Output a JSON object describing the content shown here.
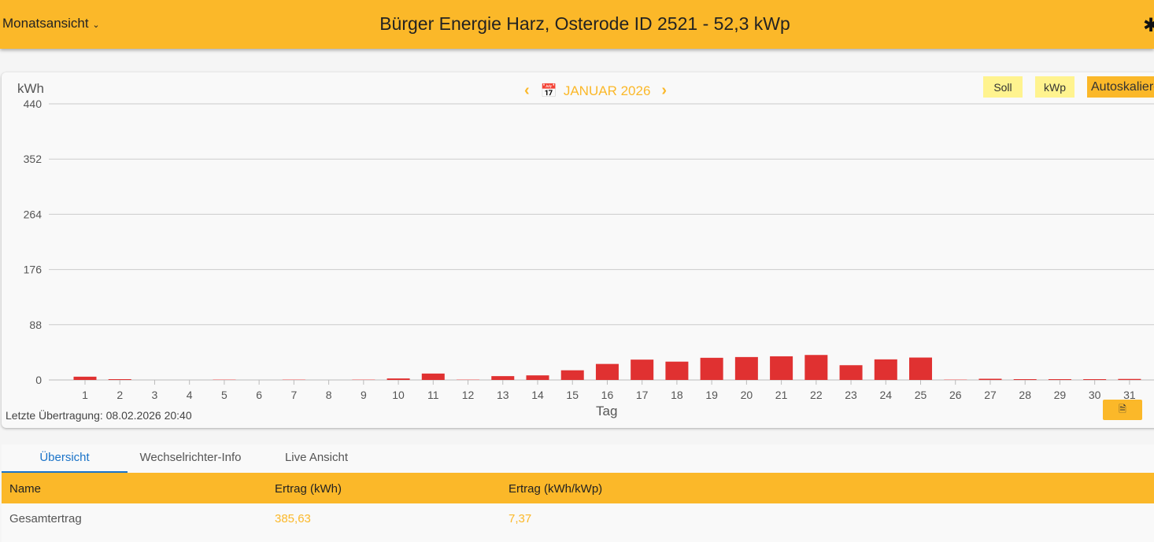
{
  "header": {
    "view_select": "Monatsansicht",
    "title": "Bürger Energie Harz, Osterode ID 2521 - 52,3 kWp",
    "settings_icon": "gear-icon"
  },
  "chart_controls": {
    "prev": "‹",
    "month": "JANUAR 2026",
    "next": "›",
    "soll": "Soll",
    "kwp": "kWp",
    "autoscale": "Autoskalieren"
  },
  "chart_data": {
    "type": "bar",
    "title": "",
    "xlabel": "Tag",
    "ylabel": "kWh",
    "ylim": [
      0,
      440
    ],
    "yticks": [
      0,
      88,
      176,
      264,
      352,
      440
    ],
    "categories": [
      "1",
      "2",
      "3",
      "4",
      "5",
      "6",
      "7",
      "8",
      "9",
      "10",
      "11",
      "12",
      "13",
      "14",
      "15",
      "16",
      "17",
      "18",
      "19",
      "20",
      "21",
      "22",
      "23",
      "24",
      "25",
      "26",
      "27",
      "28",
      "29",
      "30",
      "31"
    ],
    "values": [
      5.2,
      1.2,
      0,
      0,
      0.5,
      0,
      0.5,
      0,
      0.3,
      2.4,
      10.2,
      0.8,
      6.1,
      7.3,
      15.4,
      25.5,
      32.4,
      29.2,
      35.3,
      36.5,
      37.7,
      39.8,
      23.5,
      32.8,
      35.7,
      0.5,
      1.9,
      1.2,
      1.0,
      1.0,
      1.6
    ],
    "bar_color": "#e03131",
    "grid": true
  },
  "footer": {
    "last_transfer": "Letzte Übertragung: 08.02.2026 20:40",
    "pdf_button": "PDF"
  },
  "tabs": [
    {
      "label": "Übersicht",
      "active": true
    },
    {
      "label": "Wechselrichter-Info"
    },
    {
      "label": "Live Ansicht"
    }
  ],
  "table": {
    "headers": [
      "Name",
      "Ertrag (kWh)",
      "Ertrag (kWh/kWp)"
    ],
    "rows": [
      [
        "Gesamtertrag",
        "385,63",
        "7,37"
      ]
    ]
  },
  "colors": {
    "accent": "#fbb829",
    "tab_active": "#1a73c8"
  }
}
